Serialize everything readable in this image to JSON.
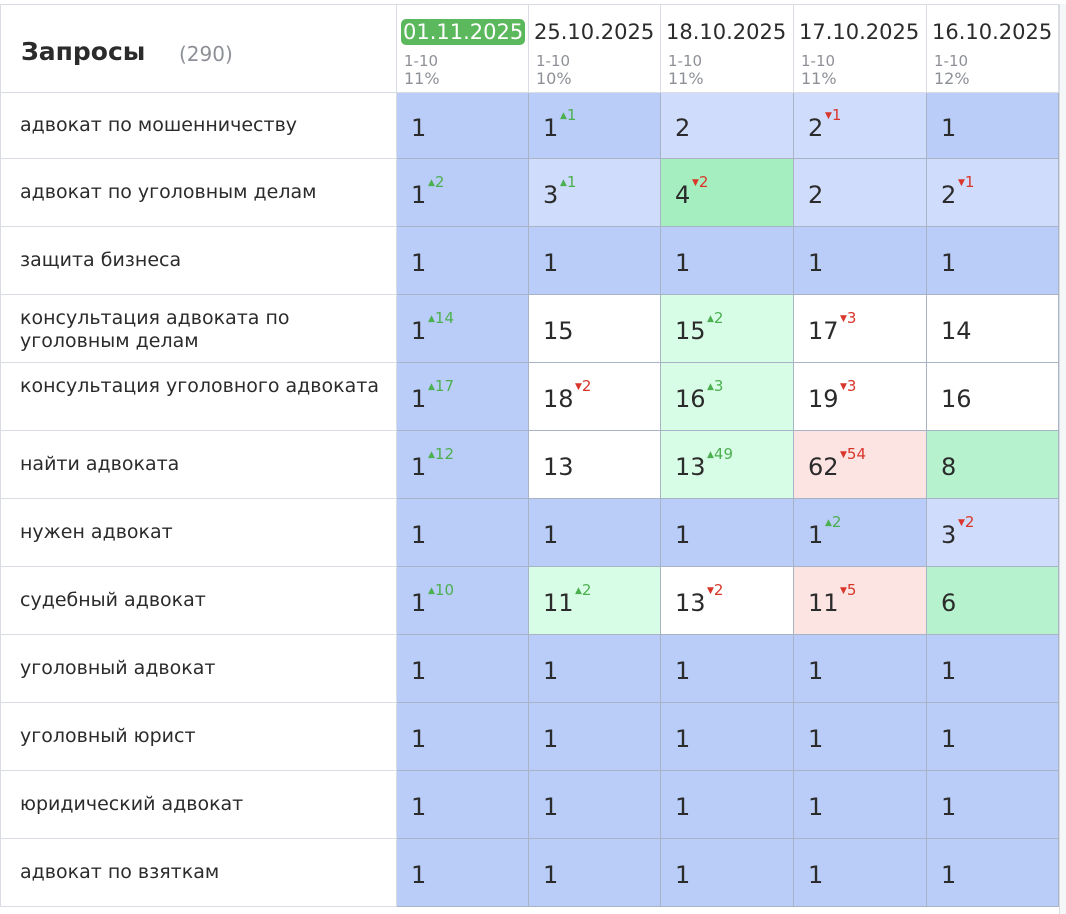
{
  "header": {
    "title": "Запросы",
    "count": "(290)",
    "dates": [
      {
        "date": "01.11.2025",
        "range": "1-10",
        "pct": "11%",
        "active": true
      },
      {
        "date": "25.10.2025",
        "range": "1-10",
        "pct": "10%",
        "active": false
      },
      {
        "date": "18.10.2025",
        "range": "1-10",
        "pct": "11%",
        "active": false
      },
      {
        "date": "17.10.2025",
        "range": "1-10",
        "pct": "11%",
        "active": false
      },
      {
        "date": "16.10.2025",
        "range": "1-10",
        "pct": "12%",
        "active": false
      }
    ]
  },
  "colors": {
    "top1": "#bacdf8",
    "top3": "#cfdcfb",
    "green_strong": "#a4eec0",
    "green_mid": "#b5f2cd",
    "green_light": "#d8fde6",
    "red_light": "#fbe4e2",
    "white": "#ffffff",
    "up": "#4caf50",
    "down": "#d9362b",
    "active_date": "#5cb85c"
  },
  "rows": [
    {
      "query": "адвокат по мошенничеству",
      "cells": [
        {
          "v": "1",
          "bg": "top1"
        },
        {
          "v": "1",
          "d": "1",
          "dir": "up",
          "bg": "top1"
        },
        {
          "v": "2",
          "bg": "top3"
        },
        {
          "v": "2",
          "d": "1",
          "dir": "down",
          "bg": "top3"
        },
        {
          "v": "1",
          "bg": "top1"
        }
      ]
    },
    {
      "query": "адвокат по уголовным делам",
      "cells": [
        {
          "v": "1",
          "d": "2",
          "dir": "up",
          "bg": "top1"
        },
        {
          "v": "3",
          "d": "1",
          "dir": "up",
          "bg": "top3"
        },
        {
          "v": "4",
          "d": "2",
          "dir": "down",
          "bg": "green_strong"
        },
        {
          "v": "2",
          "bg": "top3"
        },
        {
          "v": "2",
          "d": "1",
          "dir": "down",
          "bg": "top3"
        }
      ]
    },
    {
      "query": "защита бизнеса",
      "cells": [
        {
          "v": "1",
          "bg": "top1"
        },
        {
          "v": "1",
          "bg": "top1"
        },
        {
          "v": "1",
          "bg": "top1"
        },
        {
          "v": "1",
          "bg": "top1"
        },
        {
          "v": "1",
          "bg": "top1"
        }
      ]
    },
    {
      "query": "консультация адвоката по уголовным делам",
      "cells": [
        {
          "v": "1",
          "d": "14",
          "dir": "up",
          "bg": "top1"
        },
        {
          "v": "15",
          "bg": "white"
        },
        {
          "v": "15",
          "d": "2",
          "dir": "up",
          "bg": "green_light"
        },
        {
          "v": "17",
          "d": "3",
          "dir": "down",
          "bg": "white"
        },
        {
          "v": "14",
          "bg": "white"
        }
      ]
    },
    {
      "query": "консультация уголовного адвоката",
      "cells": [
        {
          "v": "1",
          "d": "17",
          "dir": "up",
          "bg": "top1"
        },
        {
          "v": "18",
          "d": "2",
          "dir": "down",
          "bg": "white"
        },
        {
          "v": "16",
          "d": "3",
          "dir": "up",
          "bg": "green_light"
        },
        {
          "v": "19",
          "d": "3",
          "dir": "down",
          "bg": "white"
        },
        {
          "v": "16",
          "bg": "white"
        }
      ]
    },
    {
      "query": "найти адвоката",
      "cells": [
        {
          "v": "1",
          "d": "12",
          "dir": "up",
          "bg": "top1"
        },
        {
          "v": "13",
          "bg": "white"
        },
        {
          "v": "13",
          "d": "49",
          "dir": "up",
          "bg": "green_light"
        },
        {
          "v": "62",
          "d": "54",
          "dir": "down",
          "bg": "red_light"
        },
        {
          "v": "8",
          "bg": "green_mid"
        }
      ]
    },
    {
      "query": "нужен адвокат",
      "cells": [
        {
          "v": "1",
          "bg": "top1"
        },
        {
          "v": "1",
          "bg": "top1"
        },
        {
          "v": "1",
          "bg": "top1"
        },
        {
          "v": "1",
          "d": "2",
          "dir": "up",
          "bg": "top1"
        },
        {
          "v": "3",
          "d": "2",
          "dir": "down",
          "bg": "top3"
        }
      ]
    },
    {
      "query": "судебный адвокат",
      "cells": [
        {
          "v": "1",
          "d": "10",
          "dir": "up",
          "bg": "top1"
        },
        {
          "v": "11",
          "d": "2",
          "dir": "up",
          "bg": "green_light"
        },
        {
          "v": "13",
          "d": "2",
          "dir": "down",
          "bg": "white"
        },
        {
          "v": "11",
          "d": "5",
          "dir": "down",
          "bg": "red_light"
        },
        {
          "v": "6",
          "bg": "green_mid"
        }
      ]
    },
    {
      "query": "уголовный адвокат",
      "cells": [
        {
          "v": "1",
          "bg": "top1"
        },
        {
          "v": "1",
          "bg": "top1"
        },
        {
          "v": "1",
          "bg": "top1"
        },
        {
          "v": "1",
          "bg": "top1"
        },
        {
          "v": "1",
          "bg": "top1"
        }
      ]
    },
    {
      "query": "уголовный юрист",
      "cells": [
        {
          "v": "1",
          "bg": "top1"
        },
        {
          "v": "1",
          "bg": "top1"
        },
        {
          "v": "1",
          "bg": "top1"
        },
        {
          "v": "1",
          "bg": "top1"
        },
        {
          "v": "1",
          "bg": "top1"
        }
      ]
    },
    {
      "query": "юридический адвокат",
      "cells": [
        {
          "v": "1",
          "bg": "top1"
        },
        {
          "v": "1",
          "bg": "top1"
        },
        {
          "v": "1",
          "bg": "top1"
        },
        {
          "v": "1",
          "bg": "top1"
        },
        {
          "v": "1",
          "bg": "top1"
        }
      ]
    },
    {
      "query": "адвокат по взяткам",
      "cells": [
        {
          "v": "1",
          "bg": "top1"
        },
        {
          "v": "1",
          "bg": "top1"
        },
        {
          "v": "1",
          "bg": "top1"
        },
        {
          "v": "1",
          "bg": "top1"
        },
        {
          "v": "1",
          "bg": "top1"
        }
      ]
    }
  ]
}
